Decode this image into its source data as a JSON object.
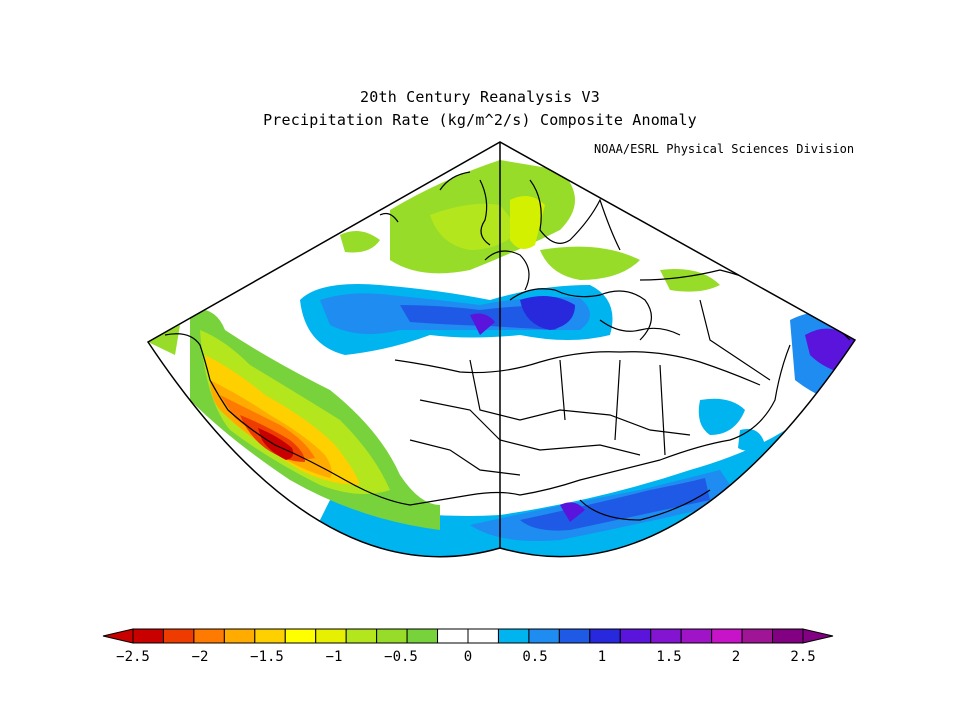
{
  "title": "20th Century Reanalysis V3",
  "subtitle": "Precipitation Rate (kg/m^2/s) Composite Anomaly",
  "credit": "NOAA/ESRL Physical Sciences Division",
  "colorbar": {
    "tick_labels": [
      "-2.5",
      "-2",
      "-1.5",
      "-1",
      "-0.5",
      "0",
      "0.5",
      "1",
      "1.5",
      "2",
      "2.5"
    ],
    "colors": [
      "#c80000",
      "#ee3b00",
      "#ff7a00",
      "#ffab00",
      "#ffd000",
      "#ffff00",
      "#e6f000",
      "#b4e61e",
      "#96dc28",
      "#78d23c",
      "#ffffff",
      "#ffffff",
      "#00b4f0",
      "#1e8cf0",
      "#1e5ae6",
      "#2828dc",
      "#5a14dc",
      "#8214d2",
      "#a014c8",
      "#c814c8",
      "#a01496",
      "#820082"
    ]
  }
}
